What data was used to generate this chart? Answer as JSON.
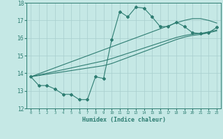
{
  "xlabel": "Humidex (Indice chaleur)",
  "ylabel": "",
  "x_data": [
    0,
    1,
    2,
    3,
    4,
    5,
    6,
    7,
    8,
    9,
    10,
    11,
    12,
    13,
    14,
    15,
    16,
    17,
    18,
    19,
    20,
    21,
    22,
    23
  ],
  "y_main": [
    13.8,
    13.3,
    13.3,
    13.1,
    12.8,
    12.8,
    12.5,
    12.5,
    13.8,
    13.7,
    15.9,
    17.5,
    17.2,
    17.75,
    17.7,
    17.2,
    16.65,
    16.65,
    16.9,
    16.65,
    16.3,
    16.25,
    16.3,
    16.6
  ],
  "y_line1": [
    13.8,
    13.97,
    14.14,
    14.31,
    14.48,
    14.65,
    14.82,
    14.99,
    15.16,
    15.33,
    15.5,
    15.67,
    15.84,
    16.01,
    16.18,
    16.35,
    16.52,
    16.69,
    16.86,
    17.0,
    17.1,
    17.1,
    17.0,
    16.85
  ],
  "y_line2": [
    13.8,
    13.87,
    13.94,
    14.01,
    14.08,
    14.15,
    14.22,
    14.29,
    14.36,
    14.43,
    14.55,
    14.72,
    14.89,
    15.06,
    15.23,
    15.4,
    15.57,
    15.74,
    15.91,
    16.05,
    16.15,
    16.2,
    16.3,
    16.4
  ],
  "y_line3": [
    13.8,
    13.9,
    14.0,
    14.1,
    14.2,
    14.3,
    14.4,
    14.5,
    14.6,
    14.7,
    14.83,
    14.98,
    15.13,
    15.28,
    15.43,
    15.58,
    15.73,
    15.88,
    16.03,
    16.14,
    16.22,
    16.26,
    16.35,
    16.45
  ],
  "ylim": [
    12,
    18
  ],
  "xlim": [
    -0.5,
    23.5
  ],
  "line_color": "#2e7d72",
  "bg_color": "#c5e8e5",
  "grid_color": "#a8cece",
  "tick_color": "#2e7d72",
  "label_color": "#2e7d72"
}
